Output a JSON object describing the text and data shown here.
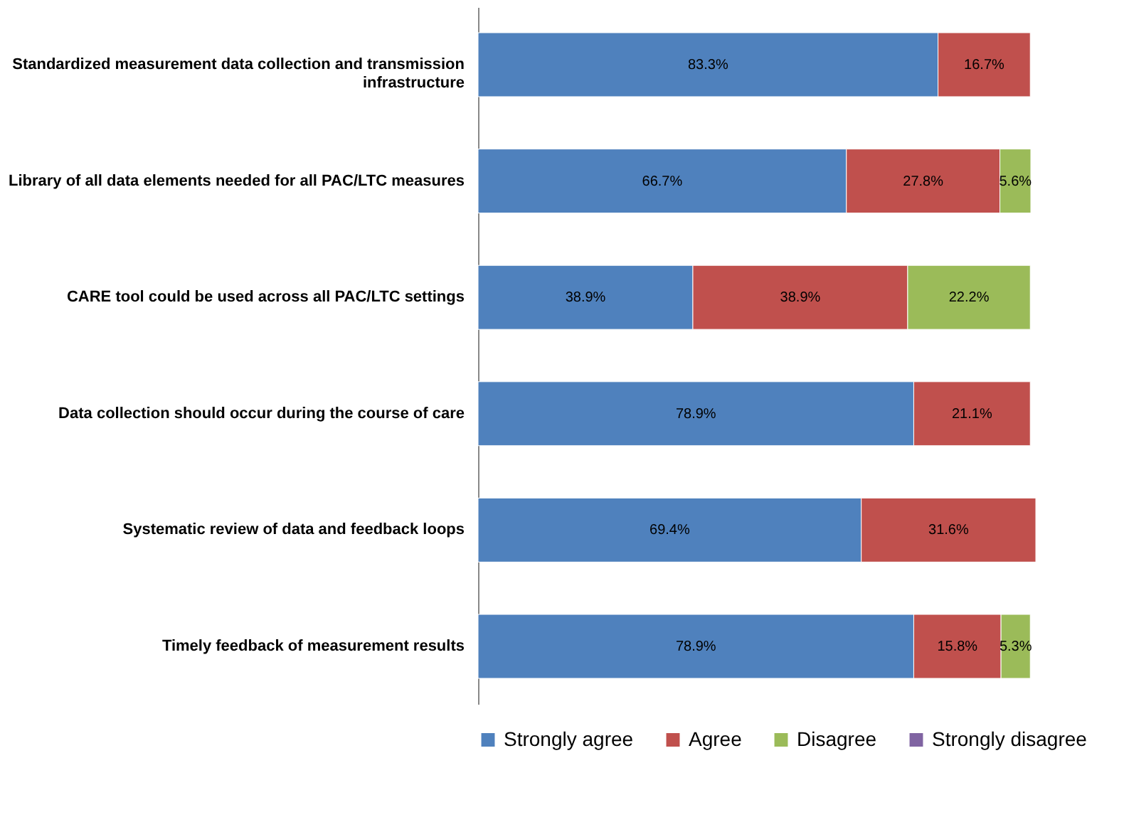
{
  "chart_data": {
    "type": "bar",
    "orientation": "horizontal",
    "stacked": true,
    "tick_labels": "y",
    "grid": false,
    "legend": "bottom",
    "categories": [
      "Standardized measurement data collection and transmission infrastructure",
      "Library of all data elements needed for all PAC/LTC measures",
      "CARE tool could be used across all PAC/LTC settings",
      "Data collection should occur during the course of care",
      "Systematic review of data and feedback loops",
      "Timely feedback of measurement results"
    ],
    "series": [
      {
        "name": "Strongly agree",
        "color": "#4f81bd",
        "values": [
          83.3,
          66.7,
          38.9,
          78.9,
          69.4,
          78.9
        ],
        "value_labels": [
          "83.3%",
          "66.7%",
          "38.9%",
          "78.9%",
          "69.4%",
          "78.9%"
        ]
      },
      {
        "name": "Agree",
        "color": "#c0504d",
        "values": [
          16.7,
          27.8,
          38.9,
          21.1,
          31.6,
          15.8
        ],
        "value_labels": [
          "16.7%",
          "27.8%",
          "38.9%",
          "21.1%",
          "31.6%",
          "15.8%"
        ]
      },
      {
        "name": "Disagree",
        "color": "#9bbb59",
        "values": [
          null,
          5.6,
          22.2,
          null,
          null,
          5.3
        ],
        "value_labels": [
          null,
          "5.6%",
          "22.2%",
          null,
          null,
          "5.3%"
        ]
      },
      {
        "name": "Strongly disagree",
        "color": "#8064a2",
        "values": [
          null,
          null,
          null,
          null,
          null,
          null
        ]
      }
    ]
  }
}
